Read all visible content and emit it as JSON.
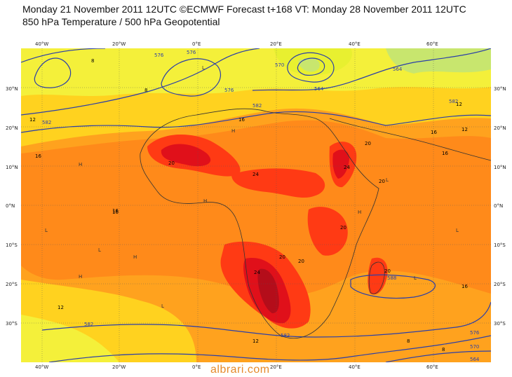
{
  "header": {
    "line1": "Monday 21 November 2011 12UTC ©ECMWF Forecast t+168 VT: Monday 28 November 2011 12UTC",
    "line2": "850 hPa Temperature / 500 hPa Geopotential"
  },
  "axes": {
    "lon_labels": [
      "40°W",
      "20°W",
      "0°E",
      "20°E",
      "40°E",
      "60°E"
    ],
    "lat_labels": [
      "30°N",
      "20°N",
      "10°N",
      "0°N",
      "10°S",
      "20°S",
      "30°S"
    ]
  },
  "contours": {
    "geopotential": [
      "576",
      "576",
      "570",
      "564",
      "576",
      "582",
      "582",
      "582",
      "564",
      "582",
      "576",
      "570",
      "564",
      "588",
      "582"
    ],
    "temperature": [
      "12",
      "16",
      "16",
      "12",
      "8",
      "8",
      "20",
      "24",
      "20",
      "20",
      "24",
      "20",
      "20",
      "24",
      "20",
      "16",
      "12",
      "16",
      "12",
      "8",
      "16",
      "20",
      "16",
      "16",
      "12",
      "8"
    ]
  },
  "watermark": "albrari.com",
  "colors": {
    "cold": "#c8e66e",
    "cool": "#f4f03a",
    "mild": "#ffd21f",
    "warm": "#ffa21e",
    "hot": "#ff7a1a",
    "very_hot": "#ff3a14",
    "extreme": "#e0101a",
    "peak": "#b40d1a",
    "isoline": "#2b3fa8"
  }
}
